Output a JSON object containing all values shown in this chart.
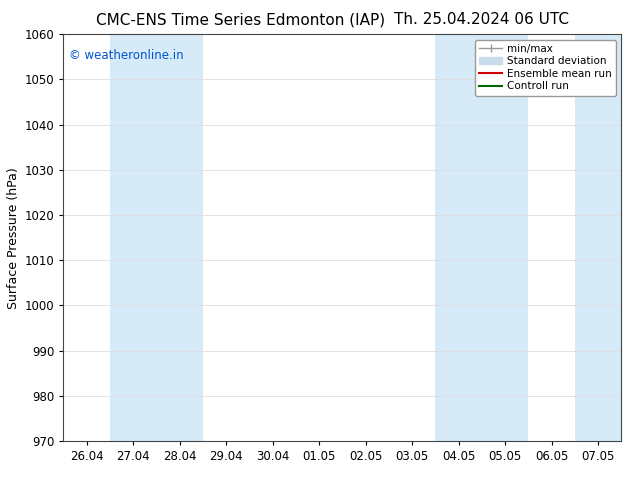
{
  "title_left": "CMC-ENS Time Series Edmonton (IAP)",
  "title_right": "Th. 25.04.2024 06 UTC",
  "ylabel": "Surface Pressure (hPa)",
  "ylim": [
    970,
    1060
  ],
  "yticks": [
    970,
    980,
    990,
    1000,
    1010,
    1020,
    1030,
    1040,
    1050,
    1060
  ],
  "x_tick_labels": [
    "26.04",
    "27.04",
    "28.04",
    "29.04",
    "30.04",
    "01.05",
    "02.05",
    "03.05",
    "04.05",
    "05.05",
    "06.05",
    "07.05"
  ],
  "x_tick_positions": [
    0,
    1,
    2,
    3,
    4,
    5,
    6,
    7,
    8,
    9,
    10,
    11
  ],
  "xlim": [
    -0.5,
    11.5
  ],
  "shaded_bands": [
    {
      "x_start": 0.5,
      "x_end": 2.5,
      "color": "#d6eaf8"
    },
    {
      "x_start": 7.5,
      "x_end": 9.5,
      "color": "#d6eaf8"
    }
  ],
  "right_edge_shade": {
    "x_start": 10.5,
    "x_end": 11.5,
    "color": "#d6eaf8"
  },
  "watermark": "© weatheronline.in",
  "watermark_color": "#0055cc",
  "legend_items": [
    {
      "label": "min/max",
      "color": "#999999",
      "lw": 1.0
    },
    {
      "label": "Standard deviation",
      "color": "#c8dcea",
      "lw": 6
    },
    {
      "label": "Ensemble mean run",
      "color": "#cc0000",
      "lw": 1.5
    },
    {
      "label": "Controll run",
      "color": "#006600",
      "lw": 1.5
    }
  ],
  "bg_color": "#ffffff",
  "grid_color": "#dddddd",
  "title_fontsize": 11,
  "tick_fontsize": 8.5,
  "ylabel_fontsize": 9
}
